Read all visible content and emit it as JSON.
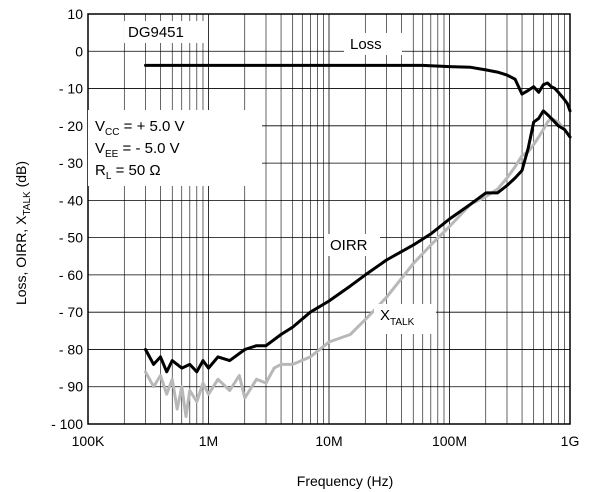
{
  "chart_data": {
    "type": "line",
    "xscale": "log",
    "xlim": [
      100000,
      1000000000
    ],
    "ylim": [
      -100,
      10
    ],
    "grid": true,
    "xlabel": "Frequency (Hz)",
    "ylabel": {
      "prefix": "Loss, OIRR, X",
      "sub": "TALK",
      "suffix": " (dB)"
    },
    "x_ticks": [
      {
        "value": 100000,
        "label": "100K"
      },
      {
        "value": 1000000,
        "label": "1M"
      },
      {
        "value": 10000000,
        "label": "10M"
      },
      {
        "value": 100000000,
        "label": "100M"
      },
      {
        "value": 1000000000,
        "label": "1G"
      }
    ],
    "y_ticks": [
      {
        "value": 10,
        "label": "10"
      },
      {
        "value": 0,
        "label": "0"
      },
      {
        "value": -10,
        "label": "- 10"
      },
      {
        "value": -20,
        "label": "- 20"
      },
      {
        "value": -30,
        "label": "- 30"
      },
      {
        "value": -40,
        "label": "- 40"
      },
      {
        "value": -50,
        "label": "- 50"
      },
      {
        "value": -60,
        "label": "- 60"
      },
      {
        "value": -70,
        "label": "- 70"
      },
      {
        "value": -80,
        "label": "- 80"
      },
      {
        "value": -90,
        "label": "- 90"
      },
      {
        "value": -100,
        "label": "- 100"
      }
    ],
    "part_label": "DG9451",
    "conditions": [
      {
        "main": "V",
        "sub": "CC",
        "rest": " =  + 5.0 V"
      },
      {
        "main": "V",
        "sub": "EE",
        "rest": " = - 5.0 V"
      },
      {
        "main": "R",
        "sub": "L",
        "rest": " = 50 Ω"
      }
    ],
    "series": [
      {
        "name": "Loss",
        "color": "#000000",
        "x": [
          300000,
          1000000,
          3000000,
          10000000,
          30000000,
          60000000,
          100000000,
          150000000,
          200000000,
          250000000,
          300000000,
          350000000,
          400000000,
          450000000,
          500000000,
          550000000,
          600000000,
          650000000,
          700000000,
          750000000,
          800000000,
          850000000,
          900000000,
          950000000,
          1000000000
        ],
        "y": [
          -3.8,
          -3.8,
          -3.8,
          -3.8,
          -3.8,
          -3.8,
          -4.1,
          -4.3,
          -5.0,
          -5.6,
          -6.4,
          -7.5,
          -11.5,
          -10.5,
          -9.5,
          -11.0,
          -9.0,
          -8.5,
          -9.5,
          -10.0,
          -11.0,
          -12.0,
          -13.0,
          -14.0,
          -16.0
        ]
      },
      {
        "name": "OIRR",
        "color": "#000000",
        "x": [
          300000,
          350000,
          400000,
          450000,
          500000,
          600000,
          700000,
          800000,
          900000,
          1000000,
          1200000,
          1500000,
          2000000,
          2500000,
          3000000,
          4000000,
          5000000,
          7000000,
          10000000,
          15000000,
          20000000,
          30000000,
          50000000,
          70000000,
          100000000,
          150000000,
          200000000,
          250000000,
          300000000,
          350000000,
          400000000,
          450000000,
          500000000,
          550000000,
          600000000,
          650000000,
          700000000,
          800000000,
          900000000,
          1000000000
        ],
        "y": [
          -80,
          -84,
          -82,
          -86,
          -83,
          -85,
          -84,
          -86,
          -83,
          -85,
          -82,
          -83,
          -80,
          -79,
          -79,
          -76,
          -74,
          -70,
          -67,
          -63,
          -60,
          -56,
          -52,
          -49,
          -45,
          -41,
          -38,
          -38,
          -36,
          -34,
          -32,
          -26,
          -19,
          -18,
          -16,
          -17,
          -18,
          -20,
          -21,
          -23
        ]
      },
      {
        "name": "XTALK",
        "label_main": "X",
        "label_sub": "TALK",
        "color": "#b8b8b8",
        "x": [
          300000,
          350000,
          400000,
          450000,
          500000,
          550000,
          600000,
          650000,
          700000,
          800000,
          900000,
          1000000,
          1200000,
          1500000,
          1800000,
          2000000,
          2500000,
          3000000,
          3500000,
          4000000,
          5000000,
          7000000,
          10000000,
          15000000,
          20000000,
          30000000,
          50000000,
          70000000,
          100000000,
          150000000,
          200000000,
          250000000,
          300000000,
          350000000,
          400000000,
          450000000,
          500000000,
          550000000,
          600000000,
          650000000,
          700000000,
          800000000,
          900000000,
          1000000000
        ],
        "y": [
          -86,
          -90,
          -87,
          -92,
          -88,
          -96,
          -90,
          -98,
          -91,
          -94,
          -89,
          -92,
          -88,
          -91,
          -87,
          -93,
          -88,
          -89,
          -85,
          -84,
          -84,
          -82,
          -78,
          -76,
          -72,
          -66,
          -57,
          -52,
          -47,
          -41,
          -39,
          -37,
          -34,
          -31,
          -28,
          -27,
          -25,
          -23,
          -21,
          -19,
          -18,
          -19,
          -21,
          -23
        ]
      }
    ]
  }
}
